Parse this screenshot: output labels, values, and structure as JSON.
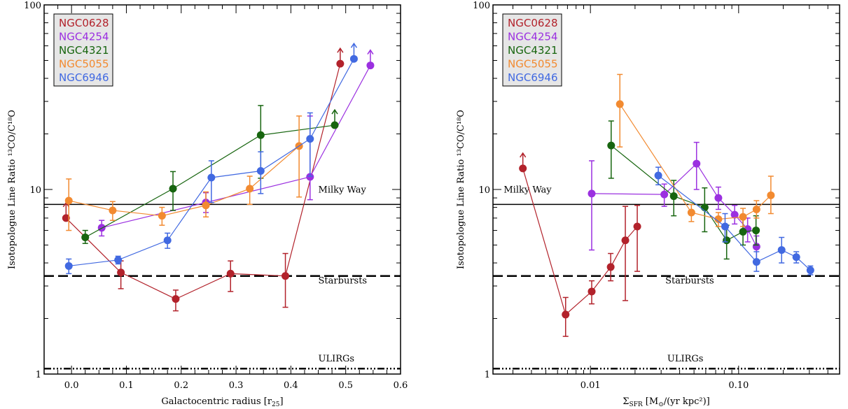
{
  "colors": {
    "NGC0628": "#b2222b",
    "NGC4254": "#9b30e0",
    "NGC4321": "#17650f",
    "NGC5055": "#f28a30",
    "NGC6946": "#4169e1"
  },
  "chart_data": [
    {
      "type": "scatter",
      "xlabel": "Galactocentric radius [r",
      "xlabel_sub": "25",
      "xlabel_close": "]",
      "ylabel": "Isotopologue Line Ratio ¹³CO/C¹⁸O",
      "xlim": [
        -0.05,
        0.6
      ],
      "ylim": [
        1,
        100
      ],
      "yscale": "log",
      "legend_position": "top-left",
      "x_ticks": [
        {
          "v": 0.0,
          "label": "0.0"
        },
        {
          "v": 0.1,
          "label": "0.1"
        },
        {
          "v": 0.2,
          "label": "0.2"
        },
        {
          "v": 0.3,
          "label": "0.3"
        },
        {
          "v": 0.4,
          "label": "0.4"
        },
        {
          "v": 0.5,
          "label": "0.5"
        },
        {
          "v": 0.6,
          "label": "0.6"
        }
      ],
      "y_ticks": [
        {
          "v": 1,
          "label": "1"
        },
        {
          "v": 10,
          "label": "10"
        },
        {
          "v": 100,
          "label": "100"
        }
      ],
      "reference_lines": [
        {
          "label": "Milky Way",
          "y": 8.3,
          "style": "solid",
          "label_x": 0.45,
          "label_y": 9.6
        },
        {
          "label": "Starbursts",
          "y": 3.4,
          "style": "dashed",
          "label_x": 0.45,
          "label_y": 3.1
        },
        {
          "label": "ULIRGs",
          "y": 1.07,
          "style": "dashdotdot",
          "label_x": 0.45,
          "label_y": 1.17
        }
      ],
      "series": [
        {
          "name": "NGC0628",
          "points": [
            {
              "x": -0.01,
              "y": 7.0,
              "lower_limit": true
            },
            {
              "x": 0.09,
              "y": 3.55,
              "lo": 2.9,
              "hi": 4.1
            },
            {
              "x": 0.19,
              "y": 2.55,
              "lo": 2.2,
              "hi": 2.85
            },
            {
              "x": 0.29,
              "y": 3.5,
              "lo": 2.8,
              "hi": 4.1
            },
            {
              "x": 0.39,
              "y": 3.4,
              "lo": 2.3,
              "hi": 4.5
            },
            {
              "x": 0.49,
              "y": 48,
              "lower_limit": true
            }
          ]
        },
        {
          "name": "NGC4254",
          "points": [
            {
              "x": 0.055,
              "y": 6.2,
              "lo": 5.6,
              "hi": 6.8
            },
            {
              "x": 0.245,
              "y": 8.5,
              "lo": 7.5,
              "hi": 9.6
            },
            {
              "x": 0.435,
              "y": 11.7,
              "lo": 8.8,
              "hi": 25
            },
            {
              "x": 0.545,
              "y": 47,
              "lower_limit": true
            }
          ]
        },
        {
          "name": "NGC4321",
          "points": [
            {
              "x": 0.025,
              "y": 5.5,
              "lo": 5.1,
              "hi": 6.0
            },
            {
              "x": 0.185,
              "y": 10.1,
              "lo": 7.7,
              "hi": 12.5
            },
            {
              "x": 0.345,
              "y": 19.7,
              "lo": 11.5,
              "hi": 28.5
            },
            {
              "x": 0.48,
              "y": 22.3,
              "lower_limit": true
            }
          ]
        },
        {
          "name": "NGC5055",
          "points": [
            {
              "x": -0.005,
              "y": 8.7,
              "lo": 6.0,
              "hi": 11.4
            },
            {
              "x": 0.075,
              "y": 7.7,
              "lo": 6.8,
              "hi": 8.6
            },
            {
              "x": 0.165,
              "y": 7.2,
              "lo": 6.4,
              "hi": 8.0
            },
            {
              "x": 0.245,
              "y": 8.2,
              "lo": 7.1,
              "hi": 9.7
            },
            {
              "x": 0.325,
              "y": 10.1,
              "lo": 8.3,
              "hi": 11.8
            },
            {
              "x": 0.415,
              "y": 17.2,
              "lo": 9.1,
              "hi": 25
            }
          ]
        },
        {
          "name": "NGC6946",
          "points": [
            {
              "x": -0.005,
              "y": 3.85,
              "lo": 3.5,
              "hi": 4.2
            },
            {
              "x": 0.085,
              "y": 4.15,
              "lo": 3.95,
              "hi": 4.35
            },
            {
              "x": 0.175,
              "y": 5.3,
              "lo": 4.8,
              "hi": 5.8
            },
            {
              "x": 0.255,
              "y": 11.6,
              "lo": 8.5,
              "hi": 14.3
            },
            {
              "x": 0.345,
              "y": 12.6,
              "lo": 9.5,
              "hi": 16.0
            },
            {
              "x": 0.435,
              "y": 18.8,
              "lo": 11.8,
              "hi": 26
            },
            {
              "x": 0.515,
              "y": 51,
              "lower_limit": true
            }
          ]
        }
      ]
    },
    {
      "type": "scatter",
      "xlabel": "Σ",
      "xlabel_sub": "SFR",
      "xlabel_close": " [M",
      "xlabel_close2": "⊙",
      "xlabel_close3": "/(yr kpc²)]",
      "ylabel": "Isotopologue Line Ratio ¹³CO/C¹⁸O",
      "xlim": [
        0.0022,
        0.48
      ],
      "xscale": "log",
      "ylim": [
        1,
        100
      ],
      "yscale": "log",
      "legend_position": "top-left",
      "x_ticks": [
        {
          "v": 0.01,
          "label": "0.01"
        },
        {
          "v": 0.1,
          "label": "0.10"
        }
      ],
      "y_ticks": [
        {
          "v": 1,
          "label": "1"
        },
        {
          "v": 10,
          "label": "10"
        },
        {
          "v": 100,
          "label": "100"
        }
      ],
      "reference_lines": [
        {
          "label": "Milky Way",
          "y": 8.3,
          "style": "solid",
          "label_x": 0.0026,
          "label_y": 9.6
        },
        {
          "label": "Starbursts",
          "y": 3.4,
          "style": "dashed",
          "label_x": 0.032,
          "label_y": 3.1
        },
        {
          "label": "ULIRGs",
          "y": 1.07,
          "style": "dashdotdot",
          "label_x": 0.033,
          "label_y": 1.17
        }
      ],
      "series": [
        {
          "name": "NGC0628",
          "points": [
            {
              "x": 0.0035,
              "y": 13.0,
              "lower_limit": true
            },
            {
              "x": 0.0068,
              "y": 2.1,
              "lo": 1.6,
              "hi": 2.6
            },
            {
              "x": 0.0102,
              "y": 2.8,
              "lo": 2.4,
              "hi": 3.2
            },
            {
              "x": 0.0137,
              "y": 3.8,
              "lo": 3.2,
              "hi": 4.5
            },
            {
              "x": 0.0172,
              "y": 5.3,
              "lo": 2.5,
              "hi": 8.1
            },
            {
              "x": 0.0207,
              "y": 6.3,
              "lo": 3.6,
              "hi": 8.2
            }
          ]
        },
        {
          "name": "NGC4254",
          "points": [
            {
              "x": 0.0102,
              "y": 9.5,
              "lo": 4.7,
              "hi": 14.3
            },
            {
              "x": 0.0315,
              "y": 9.4,
              "lo": 8.1,
              "hi": 10.7
            },
            {
              "x": 0.052,
              "y": 13.8,
              "lo": 10.0,
              "hi": 18.0
            },
            {
              "x": 0.073,
              "y": 9.0,
              "lo": 7.8,
              "hi": 10.3
            },
            {
              "x": 0.094,
              "y": 7.3,
              "lo": 6.5,
              "hi": 8.2
            },
            {
              "x": 0.115,
              "y": 6.1,
              "lo": 5.2,
              "hi": 7.0
            },
            {
              "x": 0.132,
              "y": 4.9,
              "lo": 4.1,
              "hi": 5.6
            }
          ]
        },
        {
          "name": "NGC4321",
          "points": [
            {
              "x": 0.0138,
              "y": 17.3,
              "lo": 11.5,
              "hi": 23.5
            },
            {
              "x": 0.0365,
              "y": 9.2,
              "lo": 7.2,
              "hi": 11.2
            },
            {
              "x": 0.059,
              "y": 8.0,
              "lo": 5.9,
              "hi": 10.2
            },
            {
              "x": 0.083,
              "y": 5.3,
              "lo": 4.2,
              "hi": 6.4
            },
            {
              "x": 0.107,
              "y": 5.9,
              "lo": 5.0,
              "hi": 7.0
            },
            {
              "x": 0.131,
              "y": 6.0,
              "lo": 5.0,
              "hi": 7.2
            }
          ]
        },
        {
          "name": "NGC5055",
          "points": [
            {
              "x": 0.0158,
              "y": 29.0,
              "lo": 17.0,
              "hi": 42.0
            },
            {
              "x": 0.048,
              "y": 7.5,
              "lo": 6.7,
              "hi": 8.3
            },
            {
              "x": 0.073,
              "y": 6.9,
              "lo": 6.3,
              "hi": 7.5
            },
            {
              "x": 0.107,
              "y": 7.1,
              "lo": 6.3,
              "hi": 7.9
            },
            {
              "x": 0.132,
              "y": 7.8,
              "lo": 7.0,
              "hi": 8.7
            },
            {
              "x": 0.165,
              "y": 9.3,
              "lo": 7.4,
              "hi": 11.8
            }
          ]
        },
        {
          "name": "NGC6946",
          "points": [
            {
              "x": 0.0287,
              "y": 11.9,
              "lo": 10.6,
              "hi": 13.2
            },
            {
              "x": 0.081,
              "y": 6.3,
              "lo": 5.2,
              "hi": 7.4
            },
            {
              "x": 0.132,
              "y": 4.05,
              "lo": 3.6,
              "hi": 4.6
            },
            {
              "x": 0.195,
              "y": 4.7,
              "lo": 4.0,
              "hi": 5.5
            },
            {
              "x": 0.245,
              "y": 4.3,
              "lo": 4.0,
              "hi": 4.6
            },
            {
              "x": 0.305,
              "y": 3.65,
              "lo": 3.45,
              "hi": 3.85
            }
          ]
        }
      ]
    }
  ]
}
